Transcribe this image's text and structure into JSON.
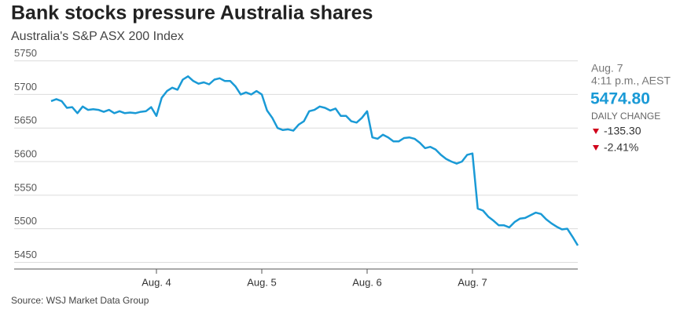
{
  "chart_data": {
    "type": "line",
    "title": "Bank stocks pressure Australia shares",
    "subtitle": "Australia's S&P ASX 200 Index",
    "source": "Source: WSJ Market Data Group",
    "color": "#1a9ad6",
    "grid": true,
    "xlim": [
      0,
      100
    ],
    "xticks": [
      {
        "value": 20,
        "label": "Aug. 4"
      },
      {
        "value": 40,
        "label": "Aug. 5"
      },
      {
        "value": 60,
        "label": "Aug. 6"
      },
      {
        "value": 80,
        "label": "Aug. 7"
      }
    ],
    "ylim": [
      5440,
      5760
    ],
    "yticks": [
      5450,
      5500,
      5550,
      5600,
      5650,
      5700,
      5750
    ],
    "values": [
      5690,
      5693,
      5690,
      5680,
      5681,
      5672,
      5682,
      5677,
      5678,
      5677,
      5674,
      5677,
      5672,
      5675,
      5672,
      5673,
      5672,
      5674,
      5675,
      5681,
      5668,
      5695,
      5705,
      5710,
      5707,
      5722,
      5727,
      5720,
      5716,
      5718,
      5715,
      5722,
      5724,
      5720,
      5720,
      5712,
      5700,
      5703,
      5700,
      5705,
      5700,
      5676,
      5665,
      5650,
      5647,
      5648,
      5646,
      5655,
      5660,
      5675,
      5677,
      5682,
      5680,
      5676,
      5679,
      5668,
      5668,
      5660,
      5658,
      5665,
      5675,
      5636,
      5634,
      5640,
      5636,
      5630,
      5630,
      5635,
      5636,
      5634,
      5628,
      5620,
      5622,
      5618,
      5610,
      5604,
      5600,
      5597,
      5600,
      5610,
      5612,
      5530,
      5527,
      5518,
      5512,
      5505,
      5505,
      5502,
      5510,
      5515,
      5516,
      5520,
      5524,
      5522,
      5514,
      5508,
      5503,
      5499,
      5500,
      5488,
      5475
    ]
  },
  "panel": {
    "date": "Aug. 7",
    "time": "4:11 p.m., AEST",
    "price": "5474.80",
    "change_label": "DAILY CHANGE",
    "change": "-135.30",
    "change_pct": "-2.41%"
  }
}
